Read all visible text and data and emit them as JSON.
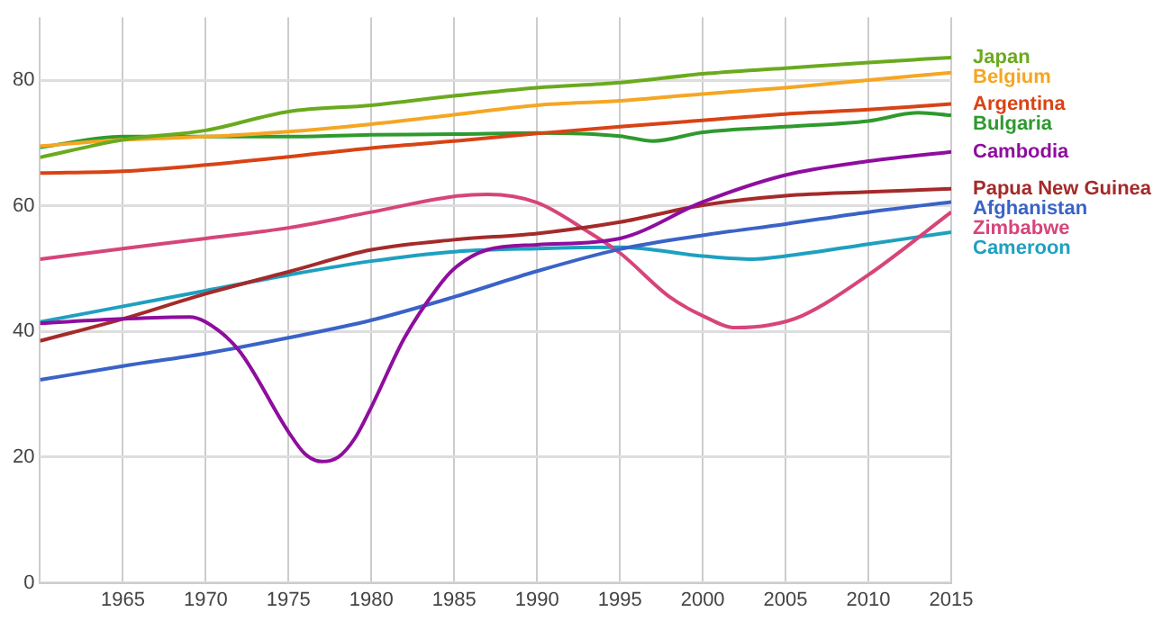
{
  "chart_data": {
    "type": "line",
    "xlim": [
      1960,
      2015
    ],
    "ylim": [
      0,
      90
    ],
    "xticks": [
      {
        "value": 1960,
        "label": null
      },
      1965,
      1970,
      1975,
      1980,
      1985,
      1990,
      1995,
      2000,
      2005,
      2010,
      2015
    ],
    "yticks": [
      0,
      20,
      40,
      60,
      80
    ],
    "grid": true,
    "legend": false,
    "marker": "none",
    "line_style": "solid",
    "series": [
      {
        "name": "Japan",
        "color": "#6aaa1e",
        "x": [
          1960,
          1965,
          1970,
          1975,
          1980,
          1985,
          1990,
          1995,
          2000,
          2005,
          2010,
          2015
        ],
        "values": [
          67.7,
          70.5,
          72,
          75,
          76,
          77.5,
          78.8,
          79.6,
          81,
          81.9,
          82.8,
          83.6
        ]
      },
      {
        "name": "Belgium",
        "color": "#f5a623",
        "x": [
          1960,
          1965,
          1970,
          1975,
          1980,
          1985,
          1990,
          1995,
          2000,
          2005,
          2010,
          2015
        ],
        "values": [
          69.5,
          70.5,
          71,
          71.8,
          73,
          74.5,
          76,
          76.7,
          77.8,
          78.8,
          80,
          81.2
        ]
      },
      {
        "name": "Argentina",
        "color": "#d84315",
        "x": [
          1960,
          1965,
          1970,
          1975,
          1980,
          1985,
          1990,
          1995,
          2000,
          2005,
          2010,
          2015
        ],
        "values": [
          65.2,
          65.5,
          66.5,
          67.8,
          69.2,
          70.3,
          71.5,
          72.6,
          73.6,
          74.6,
          75.3,
          76.2
        ]
      },
      {
        "name": "Bulgaria",
        "color": "#2e9a2e",
        "x": [
          1960,
          1965,
          1970,
          1975,
          1980,
          1985,
          1990,
          1995,
          1997,
          2000,
          2005,
          2010,
          2013,
          2015
        ],
        "values": [
          69.3,
          71,
          71,
          71,
          71.3,
          71.4,
          71.6,
          71.1,
          70.3,
          71.7,
          72.6,
          73.5,
          74.8,
          74.4
        ]
      },
      {
        "name": "Cambodia",
        "color": "#8e0e9e",
        "x": [
          1960,
          1965,
          1969,
          1970,
          1972,
          1975,
          1976,
          1977,
          1978,
          1979,
          1980,
          1982,
          1984,
          1985,
          1987,
          1990,
          1995,
          2000,
          2005,
          2010,
          2015
        ],
        "values": [
          41.3,
          42,
          42.3,
          41.5,
          37,
          24,
          20.5,
          19.3,
          20,
          23,
          28,
          39,
          47,
          50,
          53,
          53.8,
          54.8,
          60.6,
          64.9,
          67.1,
          68.6
        ]
      },
      {
        "name": "Papua New Guinea",
        "color": "#a52a2a",
        "x": [
          1960,
          1965,
          1970,
          1975,
          1980,
          1985,
          1990,
          1995,
          2000,
          2005,
          2010,
          2015
        ],
        "values": [
          38.5,
          42,
          46,
          49.5,
          53,
          54.6,
          55.6,
          57.4,
          60.1,
          61.6,
          62.2,
          62.7
        ]
      },
      {
        "name": "Afghanistan",
        "color": "#3a63c6",
        "x": [
          1960,
          1965,
          1970,
          1975,
          1980,
          1985,
          1990,
          1995,
          2000,
          2005,
          2010,
          2015
        ],
        "values": [
          32.3,
          34.5,
          36.5,
          39,
          41.8,
          45.5,
          49.6,
          53.1,
          55.3,
          57.1,
          59,
          60.6
        ]
      },
      {
        "name": "Zimbabwe",
        "color": "#d6457a",
        "x": [
          1960,
          1965,
          1970,
          1975,
          1980,
          1985,
          1987,
          1990,
          1993,
          1995,
          1998,
          2000,
          2002,
          2004,
          2006,
          2010,
          2015
        ],
        "values": [
          51.5,
          53.2,
          54.8,
          56.5,
          59,
          61.5,
          61.8,
          60.5,
          56,
          52.5,
          45.5,
          42.5,
          40.6,
          41,
          42.5,
          49,
          59
        ]
      },
      {
        "name": "Cameroon",
        "color": "#1ea0c0",
        "x": [
          1960,
          1965,
          1970,
          1975,
          1980,
          1985,
          1990,
          1995,
          2000,
          2003,
          2005,
          2010,
          2015
        ],
        "values": [
          41.5,
          44,
          46.5,
          49,
          51.2,
          52.7,
          53.2,
          53.4,
          52,
          51.5,
          52,
          53.9,
          55.8
        ]
      }
    ]
  }
}
